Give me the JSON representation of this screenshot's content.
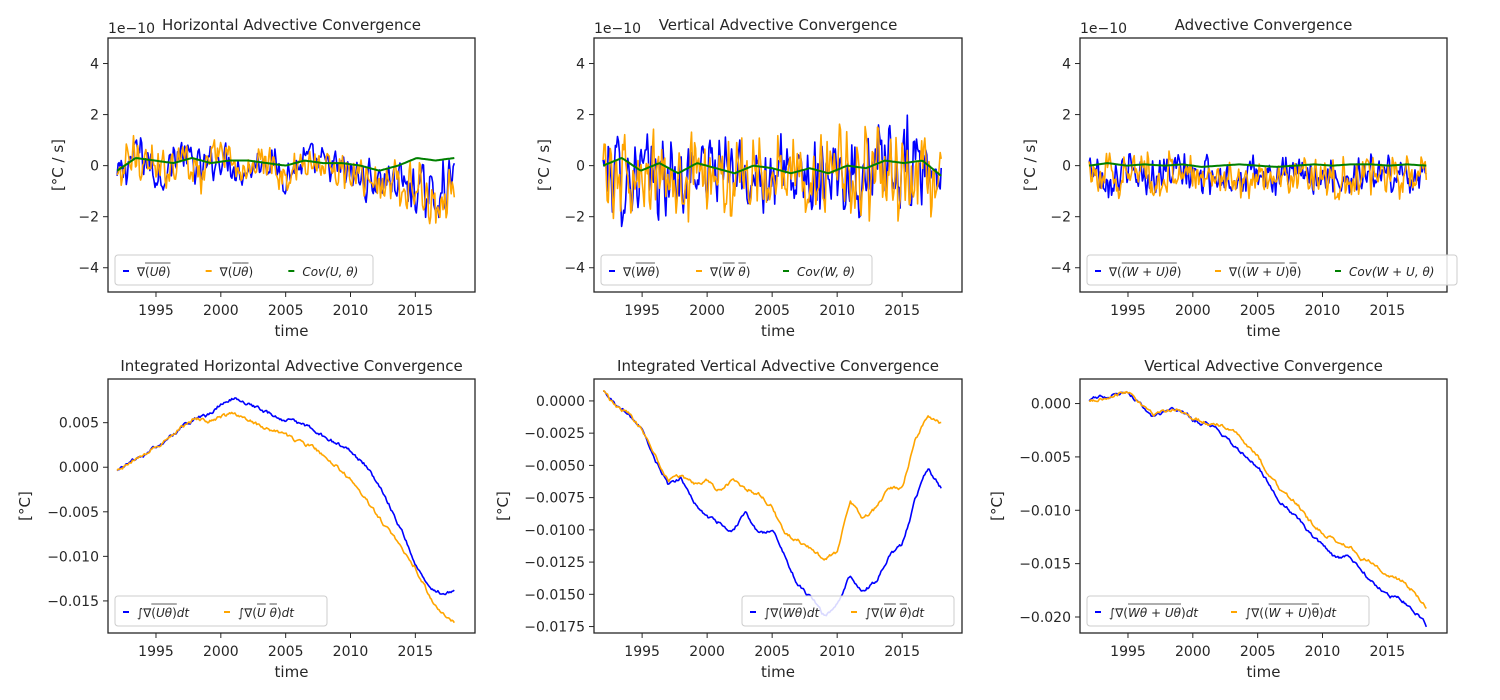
{
  "chart_data": [
    {
      "type": "line",
      "title": "Horizontal Advective Convergence",
      "xlabel": "time",
      "ylabel": "[°C / s]",
      "offset_text": "1e−10",
      "xlim": [
        1991.3,
        2019.6
      ],
      "ylim": [
        -4.95,
        5.0
      ],
      "xticks": [
        1995,
        2000,
        2005,
        2010,
        2015
      ],
      "yticks": [
        -4,
        -2,
        0,
        2,
        4
      ],
      "ytick_labels": [
        "−4",
        "−2",
        "0",
        "2",
        "4"
      ],
      "legend": "lower-left",
      "legend_columns": 3,
      "series": [
        {
          "name": "∇(Uθ) (overlined)",
          "color": "#0000ff",
          "kind": "noisy",
          "start": 1992.0,
          "end": 2018.0,
          "values": [
            -0.5,
            0.6,
            -0.4,
            0.5,
            -0.2,
            0.4,
            -0.3,
            0.3,
            -0.4,
            0.2,
            0.0,
            -0.3,
            -0.6,
            -0.5,
            -0.9,
            -1.2,
            -0.5
          ],
          "amplitude": [
            0.9,
            1.1,
            1.0,
            0.9,
            0.9,
            0.8,
            0.7,
            0.7,
            0.8,
            0.8,
            0.8,
            0.9,
            1.0,
            1.0,
            1.1,
            1.3,
            1.0
          ]
        },
        {
          "name": "∇(U θ) (mean product)",
          "color": "#ffa500",
          "kind": "noisy",
          "start": 1992.0,
          "end": 2018.0,
          "values": [
            -0.5,
            0.6,
            -0.4,
            0.5,
            -0.2,
            0.4,
            -0.3,
            0.3,
            -0.4,
            0.2,
            0.0,
            -0.3,
            -0.6,
            -0.5,
            -0.9,
            -1.2,
            -0.5
          ],
          "amplitude": [
            0.9,
            1.1,
            1.0,
            0.9,
            0.9,
            0.8,
            0.7,
            0.7,
            0.8,
            0.8,
            0.8,
            0.9,
            1.0,
            1.0,
            1.1,
            1.3,
            1.0
          ]
        },
        {
          "name": "Cov(U, θ)",
          "color": "#008000",
          "kind": "smooth",
          "start": 1992.0,
          "end": 2018.0,
          "values": [
            -0.2,
            0.3,
            0.2,
            0.1,
            0.3,
            0.1,
            0.2,
            0.2,
            0.1,
            0.0,
            0.2,
            0.1,
            0.1,
            0.0,
            -0.2,
            0.0,
            0.3,
            0.2,
            0.3
          ]
        }
      ]
    },
    {
      "type": "line",
      "title": "Vertical Advective Convergence",
      "xlabel": "time",
      "ylabel": "[°C / s]",
      "offset_text": "1e−10",
      "xlim": [
        1991.3,
        2019.6
      ],
      "ylim": [
        -4.95,
        5.0
      ],
      "xticks": [
        1995,
        2000,
        2005,
        2010,
        2015
      ],
      "yticks": [
        -4,
        -2,
        0,
        2,
        4
      ],
      "ytick_labels": [
        "−4",
        "−2",
        "0",
        "2",
        "4"
      ],
      "legend": "lower-left",
      "legend_columns": 3,
      "series": [
        {
          "name": "∇(Wθ) (overlined)",
          "color": "#0000ff",
          "kind": "noisy",
          "start": 1992.0,
          "end": 2018.0,
          "values": [
            0.0,
            -0.5,
            -0.2,
            -0.6,
            -0.4,
            0.0,
            -0.3,
            -0.4,
            -0.2,
            -0.5,
            -0.3,
            0.0,
            -0.4,
            -0.3,
            -0.2,
            0.0,
            -0.5
          ],
          "amplitude": [
            1.8,
            2.2,
            1.7,
            2.0,
            1.9,
            1.6,
            1.7,
            1.6,
            1.8,
            1.5,
            1.7,
            1.7,
            2.0,
            2.0,
            2.4,
            2.1,
            1.5
          ]
        },
        {
          "name": "∇(W θ) (mean product)",
          "color": "#ffa500",
          "kind": "noisy",
          "start": 1992.0,
          "end": 2018.0,
          "values": [
            0.0,
            -0.5,
            -0.2,
            -0.6,
            -0.4,
            0.0,
            -0.3,
            -0.4,
            -0.2,
            -0.5,
            -0.3,
            0.0,
            -0.4,
            -0.3,
            -0.2,
            0.0,
            -0.5
          ],
          "amplitude": [
            1.8,
            2.2,
            1.7,
            2.0,
            1.9,
            1.6,
            1.7,
            1.6,
            1.8,
            1.5,
            1.7,
            1.7,
            2.0,
            2.0,
            2.4,
            2.1,
            1.5
          ]
        },
        {
          "name": "Cov(W, θ)",
          "color": "#008000",
          "kind": "smooth",
          "start": 1992.0,
          "end": 2018.0,
          "values": [
            0.0,
            0.3,
            -0.2,
            0.1,
            -0.3,
            0.1,
            -0.1,
            -0.3,
            0.0,
            -0.1,
            -0.3,
            -0.1,
            -0.3,
            0.0,
            -0.1,
            0.2,
            0.1,
            0.2,
            -0.4
          ]
        }
      ]
    },
    {
      "type": "line",
      "title": "Advective Convergence",
      "xlabel": "time",
      "ylabel": "[°C / s]",
      "offset_text": "1e−10",
      "xlim": [
        1991.3,
        2019.6
      ],
      "ylim": [
        -4.95,
        5.0
      ],
      "xticks": [
        1995,
        2000,
        2005,
        2010,
        2015
      ],
      "yticks": [
        -4,
        -2,
        0,
        2,
        4
      ],
      "ytick_labels": [
        "−4",
        "−2",
        "0",
        "2",
        "4"
      ],
      "legend": "lower-left",
      "legend_columns": 3,
      "series": [
        {
          "name": "∇((W+U)θ) (overlined)",
          "color": "#0000ff",
          "kind": "noisy",
          "start": 1992.0,
          "end": 2018.0,
          "values": [
            0.0,
            -0.4,
            -0.3,
            -0.4,
            -0.2,
            -0.4,
            -0.3,
            -0.5,
            -0.4,
            -0.5,
            -0.3,
            -0.4,
            -0.5,
            -0.3,
            -0.3,
            -0.4,
            -0.3
          ],
          "amplitude": [
            0.9,
            1.0,
            0.9,
            1.0,
            0.9,
            0.9,
            0.8,
            0.8,
            0.9,
            0.8,
            0.8,
            0.8,
            0.9,
            0.9,
            0.9,
            0.9,
            0.8
          ]
        },
        {
          "name": "∇((W+U) θ) (mean product)",
          "color": "#ffa500",
          "kind": "noisy",
          "start": 1992.0,
          "end": 2018.0,
          "values": [
            0.0,
            -0.4,
            -0.3,
            -0.4,
            -0.2,
            -0.4,
            -0.3,
            -0.5,
            -0.4,
            -0.5,
            -0.3,
            -0.4,
            -0.5,
            -0.3,
            -0.3,
            -0.4,
            -0.3
          ],
          "amplitude": [
            0.9,
            1.0,
            0.9,
            1.0,
            0.9,
            0.9,
            0.8,
            0.8,
            0.9,
            0.8,
            0.8,
            0.8,
            0.9,
            0.9,
            0.9,
            0.9,
            0.8
          ]
        },
        {
          "name": "Cov(W+U, θ)",
          "color": "#008000",
          "kind": "smooth",
          "start": 1992.0,
          "end": 2018.0,
          "values": [
            0.0,
            0.1,
            0.0,
            0.05,
            0.0,
            0.05,
            -0.05,
            0.0,
            0.05,
            0.0,
            -0.05,
            0.0,
            0.05,
            0.0,
            0.05,
            0.05,
            0.0,
            0.05,
            0.0
          ]
        }
      ]
    },
    {
      "type": "line",
      "title": "Integrated Horizontal Advective Convergence",
      "xlabel": "time",
      "ylabel": "[°C]",
      "xlim": [
        1991.3,
        2019.6
      ],
      "ylim": [
        -0.0186,
        0.0099
      ],
      "xticks": [
        1995,
        2000,
        2005,
        2010,
        2015
      ],
      "yticks": [
        0.005,
        0.0,
        -0.005,
        -0.01,
        -0.015
      ],
      "ytick_labels": [
        "0.005",
        "0.000",
        "−0.005",
        "−0.010",
        "−0.015"
      ],
      "legend": "lower-left",
      "legend_columns": 2,
      "series": [
        {
          "name": "∫∇(Uθ)dt (overlined)",
          "color": "#0000ff",
          "kind": "wiggly",
          "start": 1992.0,
          "end": 2018.0,
          "values": [
            -0.0003,
            0.0005,
            0.0013,
            0.0022,
            0.0033,
            0.0045,
            0.0055,
            0.0058,
            0.0071,
            0.0077,
            0.0073,
            0.0064,
            0.0058,
            0.0053,
            0.0049,
            0.0043,
            0.0034,
            0.0026,
            0.0017,
            0.0004,
            -0.0016,
            -0.0042,
            -0.0073,
            -0.0108,
            -0.0133,
            -0.0141,
            -0.014
          ]
        },
        {
          "name": "∫∇(U θ)dt (mean product)",
          "color": "#ffa500",
          "kind": "wiggly",
          "start": 1992.0,
          "end": 2018.0,
          "values": [
            -0.0003,
            0.0006,
            0.0014,
            0.0023,
            0.0033,
            0.0045,
            0.0054,
            0.0052,
            0.0057,
            0.0059,
            0.0055,
            0.0047,
            0.0041,
            0.0035,
            0.0028,
            0.0022,
            0.0012,
            0.0001,
            -0.0014,
            -0.0033,
            -0.0053,
            -0.0072,
            -0.0093,
            -0.0112,
            -0.0142,
            -0.0165,
            -0.0174
          ]
        }
      ]
    },
    {
      "type": "line",
      "title": "Integrated Vertical Advective Convergence",
      "xlabel": "time",
      "ylabel": "[°C]",
      "xlim": [
        1991.3,
        2019.6
      ],
      "ylim": [
        -0.018,
        0.0017
      ],
      "xticks": [
        1995,
        2000,
        2005,
        2010,
        2015
      ],
      "yticks": [
        0.0,
        -0.0025,
        -0.005,
        -0.0075,
        -0.01,
        -0.0125,
        -0.015,
        -0.0175
      ],
      "ytick_labels": [
        "0.0000",
        "−0.0025",
        "−0.0050",
        "−0.0075",
        "−0.0100",
        "−0.0125",
        "−0.0150",
        "−0.0175"
      ],
      "legend": "lower-right",
      "legend_columns": 2,
      "series": [
        {
          "name": "∫∇(Wθ)dt (overlined)",
          "color": "#0000ff",
          "kind": "wiggly",
          "start": 1992.0,
          "end": 2018.0,
          "values": [
            0.0008,
            -0.0003,
            -0.0012,
            -0.002,
            -0.0045,
            -0.0065,
            -0.006,
            -0.0078,
            -0.009,
            -0.0095,
            -0.01,
            -0.0087,
            -0.0103,
            -0.0102,
            -0.012,
            -0.0143,
            -0.0153,
            -0.0167,
            -0.0158,
            -0.0135,
            -0.0148,
            -0.014,
            -0.012,
            -0.0112,
            -0.0077,
            -0.0052,
            -0.0068
          ]
        },
        {
          "name": "∫∇(W θ)dt (mean product)",
          "color": "#ffa500",
          "kind": "wiggly",
          "start": 1992.0,
          "end": 2018.0,
          "values": [
            0.0008,
            -0.0005,
            -0.001,
            -0.0022,
            -0.0043,
            -0.0062,
            -0.0058,
            -0.0065,
            -0.0062,
            -0.007,
            -0.0062,
            -0.0068,
            -0.0072,
            -0.0082,
            -0.0103,
            -0.0108,
            -0.0115,
            -0.0122,
            -0.0117,
            -0.0078,
            -0.0092,
            -0.0083,
            -0.0068,
            -0.0068,
            -0.003,
            -0.0012,
            -0.0018
          ]
        }
      ]
    },
    {
      "type": "line",
      "title": "Vertical Advective Convergence",
      "xlabel": "time",
      "ylabel": "[°C]",
      "xlim": [
        1991.3,
        2019.6
      ],
      "ylim": [
        -0.0215,
        0.0023
      ],
      "xticks": [
        1995,
        2000,
        2005,
        2010,
        2015
      ],
      "yticks": [
        0.0,
        -0.005,
        -0.01,
        -0.015,
        -0.02
      ],
      "ytick_labels": [
        "0.000",
        "−0.005",
        "−0.010",
        "−0.015",
        "−0.020"
      ],
      "legend": "lower-left",
      "legend_columns": 2,
      "series": [
        {
          "name": "∫∇(Wθ+Uθ)dt (overlined)",
          "color": "#0000ff",
          "kind": "wiggly",
          "start": 1992.0,
          "end": 2018.0,
          "values": [
            0.0004,
            0.0006,
            0.001,
            0.0012,
            0.0,
            -0.0012,
            -0.0006,
            -0.0006,
            -0.0015,
            -0.002,
            -0.0025,
            -0.0038,
            -0.0048,
            -0.0058,
            -0.0078,
            -0.0095,
            -0.0108,
            -0.012,
            -0.0133,
            -0.0145,
            -0.0142,
            -0.0155,
            -0.017,
            -0.018,
            -0.0183,
            -0.0192,
            -0.0208
          ]
        },
        {
          "name": "∫∇((W+U) θ)dt (mean product)",
          "color": "#ffa500",
          "kind": "wiggly",
          "start": 1992.0,
          "end": 2018.0,
          "values": [
            0.0003,
            0.0005,
            0.0009,
            0.0011,
            0.0,
            -0.0012,
            -0.0006,
            -0.0006,
            -0.0014,
            -0.0018,
            -0.002,
            -0.0023,
            -0.0038,
            -0.005,
            -0.0068,
            -0.0085,
            -0.0093,
            -0.011,
            -0.0122,
            -0.0128,
            -0.0133,
            -0.0145,
            -0.015,
            -0.016,
            -0.0165,
            -0.0175,
            -0.0191
          ]
        }
      ]
    }
  ],
  "legends": [
    {
      "items": [
        {
          "pre": "",
          "func": "∇",
          "open": "(",
          "body": "Uθ",
          "close": ")",
          "post": "",
          "over": "body-and-parens",
          "color": "#0000ff"
        },
        {
          "pre": "",
          "func": "∇",
          "open": "(",
          "body": "Uθ",
          "close": ")",
          "post": "",
          "over": "each-letter",
          "color": "#ffa500"
        },
        {
          "pre": "",
          "func": "",
          "open": "",
          "body": "Cov(U, θ)",
          "close": "",
          "post": "",
          "over": "none",
          "color": "#008000"
        }
      ]
    },
    {
      "items": [
        {
          "pre": "",
          "func": "∇",
          "open": "(",
          "body": "Wθ",
          "close": ")",
          "post": "",
          "over": "body",
          "color": "#0000ff"
        },
        {
          "pre": "",
          "func": "∇",
          "open": "(",
          "body": "W θ",
          "close": ")",
          "post": "",
          "over": "each-letter",
          "color": "#ffa500"
        },
        {
          "pre": "",
          "func": "",
          "open": "",
          "body": "Cov(W, θ)",
          "close": "",
          "post": "",
          "over": "none",
          "color": "#008000"
        }
      ]
    },
    {
      "items": [
        {
          "pre": "",
          "func": "∇",
          "open": "(",
          "body": "(W + U)θ",
          "close": ")",
          "post": "",
          "over": "body",
          "color": "#0000ff"
        },
        {
          "pre": "",
          "func": "∇",
          "open": "((",
          "body": "W + U",
          "close": ")θ)",
          "post": "",
          "over": "body-and-theta",
          "color": "#ffa500"
        },
        {
          "pre": "",
          "func": "",
          "open": "",
          "body": "Cov(W + U, θ)",
          "close": "",
          "post": "",
          "over": "none",
          "color": "#008000"
        }
      ]
    },
    {
      "items": [
        {
          "pre": "∫",
          "func": "∇",
          "open": "(",
          "body": "Uθ",
          "close": ")",
          "post": "dt",
          "over": "body-and-parens",
          "color": "#0000ff"
        },
        {
          "pre": "∫",
          "func": "∇",
          "open": "(",
          "body": "U θ",
          "close": ")",
          "post": "dt",
          "over": "each-letter",
          "color": "#ffa500"
        }
      ]
    },
    {
      "items": [
        {
          "pre": "∫",
          "func": "∇",
          "open": "(",
          "body": "Wθ",
          "close": ")",
          "post": "dt",
          "over": "body",
          "color": "#0000ff"
        },
        {
          "pre": "∫",
          "func": "∇",
          "open": "(",
          "body": "W θ",
          "close": ")",
          "post": "dt",
          "over": "each-letter",
          "color": "#ffa500"
        }
      ]
    },
    {
      "items": [
        {
          "pre": "∫",
          "func": "∇",
          "open": "(",
          "body": "Wθ + Uθ",
          "close": ")",
          "post": "dt",
          "over": "body",
          "color": "#0000ff"
        },
        {
          "pre": "∫",
          "func": "∇",
          "open": "((",
          "body": "W + U",
          "close": ")θ)",
          "post": "dt",
          "over": "body-and-theta",
          "color": "#ffa500"
        }
      ]
    }
  ]
}
